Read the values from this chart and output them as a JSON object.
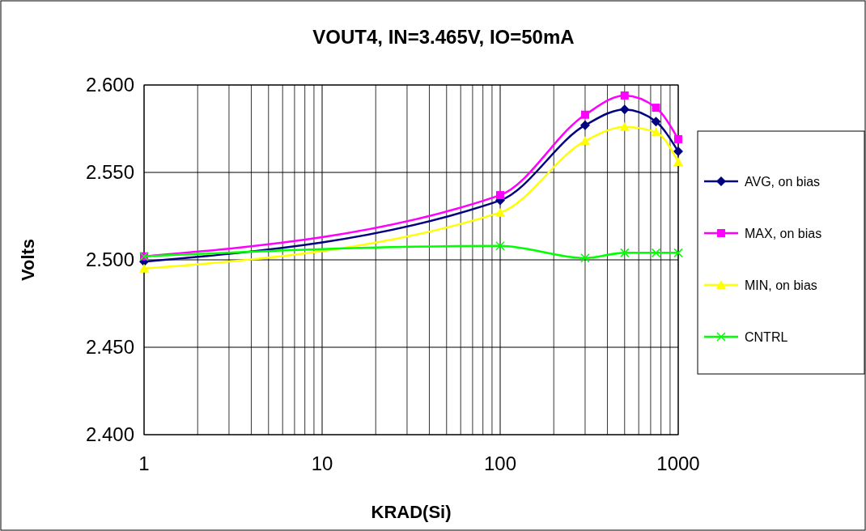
{
  "chart_data": {
    "type": "line",
    "title": "VOUT4, IN=3.465V, IO=50mA",
    "xlabel": "KRAD(Si)",
    "ylabel": "Volts",
    "log": "x",
    "xlim": [
      1,
      1000
    ],
    "xticks": [
      1,
      10,
      100,
      1000
    ],
    "ylim": [
      2.4,
      2.6
    ],
    "yticks": [
      {
        "value": 2.4,
        "label": "2.400"
      },
      {
        "value": 2.45,
        "label": "2.450"
      },
      {
        "value": 2.5,
        "label": "2.500"
      },
      {
        "value": 2.55,
        "label": "2.550"
      },
      {
        "value": 2.6,
        "label": "2.600"
      }
    ],
    "grid": true,
    "legend": "right",
    "x": [
      1,
      100,
      300,
      500,
      750,
      1000
    ],
    "series": [
      {
        "name": "AVG, on bias",
        "color": "#000080",
        "marker": "diamond",
        "values": [
          2.499,
          2.534,
          2.577,
          2.586,
          2.579,
          2.562
        ]
      },
      {
        "name": "MAX, on bias",
        "color": "#ff00ff",
        "marker": "square",
        "values": [
          2.502,
          2.537,
          2.583,
          2.594,
          2.587,
          2.569
        ]
      },
      {
        "name": "MIN, on bias",
        "color": "#ffff00",
        "marker": "triangle",
        "values": [
          2.495,
          2.527,
          2.568,
          2.576,
          2.573,
          2.556
        ]
      },
      {
        "name": "CNTRL",
        "color": "#00ff00",
        "marker": "cross",
        "values": [
          2.502,
          2.508,
          2.501,
          2.504,
          2.504,
          2.504
        ]
      }
    ]
  }
}
